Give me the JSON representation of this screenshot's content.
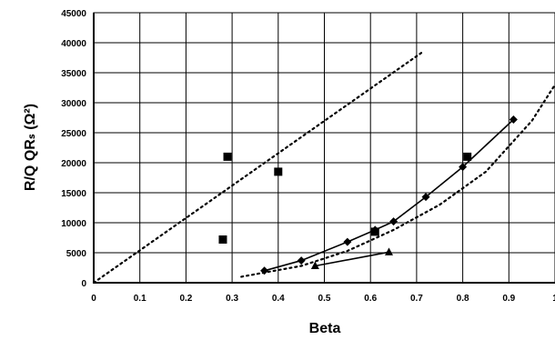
{
  "chart_data": {
    "type": "scatter",
    "xlabel": "Beta",
    "ylabel": "R/Q QRₛ (Ω²)",
    "xlim": [
      0,
      1
    ],
    "ylim": [
      0,
      45000
    ],
    "x_ticks": [
      "0",
      "0.1",
      "0.2",
      "0.3",
      "0.4",
      "0.5",
      "0.6",
      "0.7",
      "0.8",
      "0.9",
      "1"
    ],
    "y_ticks": [
      "0",
      "5000",
      "10000",
      "15000",
      "20000",
      "25000",
      "30000",
      "35000",
      "40000",
      "45000"
    ],
    "grid": true,
    "legend": "none",
    "series": [
      {
        "marker": "square",
        "line": "none",
        "x": [
          0.28,
          0.29,
          0.4,
          0.61,
          0.81
        ],
        "y": [
          7200,
          21000,
          18500,
          8500,
          21000
        ]
      },
      {
        "marker": "diamond",
        "line": "solid",
        "x": [
          0.37,
          0.45,
          0.55,
          0.61,
          0.65,
          0.72,
          0.8,
          0.91
        ],
        "y": [
          2000,
          3700,
          6800,
          8800,
          10200,
          14300,
          19300,
          27200
        ]
      },
      {
        "marker": "triangle",
        "line": "solid",
        "x": [
          0.48,
          0.64
        ],
        "y": [
          2800,
          5100
        ]
      },
      {
        "marker": "none",
        "line": "dotted",
        "x": [
          0.0,
          0.71
        ],
        "y": [
          0,
          38300
        ]
      },
      {
        "marker": "none",
        "line": "dotted",
        "x": [
          0.32,
          0.45,
          0.55,
          0.65,
          0.75,
          0.85,
          0.95,
          1.0
        ],
        "y": [
          1000,
          2800,
          5300,
          8800,
          13000,
          18500,
          27000,
          33000
        ]
      }
    ]
  }
}
